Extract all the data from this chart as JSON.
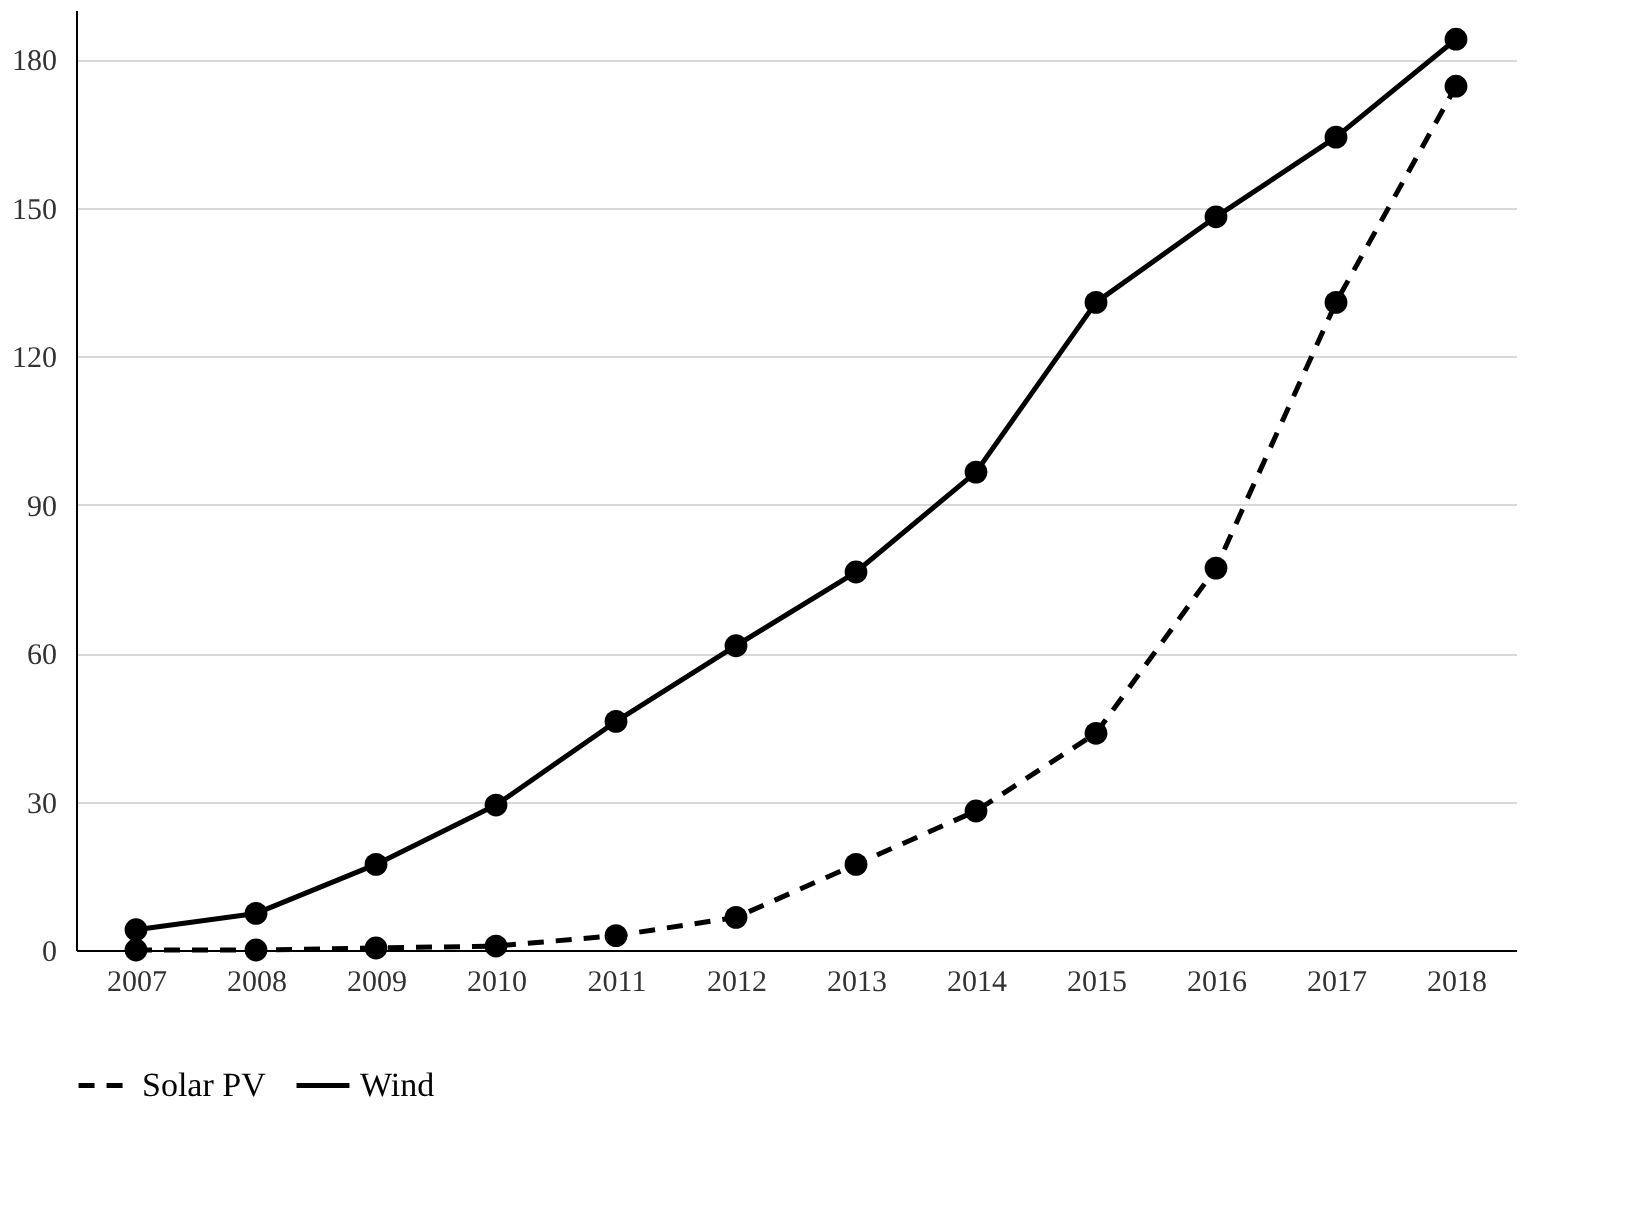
{
  "chart_data": {
    "type": "line",
    "categories": [
      "2007",
      "2008",
      "2009",
      "2010",
      "2011",
      "2012",
      "2013",
      "2014",
      "2015",
      "2016",
      "2017",
      "2018"
    ],
    "series": [
      {
        "name": "Solar PV",
        "color": "#000000",
        "line_style": "dashed",
        "values": [
          0,
          0,
          0.4,
          0.8,
          2.9,
          6.6,
          17.3,
          28.1,
          43.8,
          77.2,
          130.9,
          174.6
        ]
      },
      {
        "name": "Wind",
        "color": "#000000",
        "line_style": "solid",
        "values": [
          4.1,
          7.4,
          17.3,
          29.3,
          46.2,
          61.5,
          76.4,
          96.6,
          130.9,
          148.2,
          164.3,
          184.1
        ]
      }
    ],
    "ylim": [
      0,
      190
    ],
    "yticks": [
      0,
      30,
      60,
      90,
      120,
      150,
      180
    ],
    "grid": "y",
    "legend": "bottom",
    "marker": "circle"
  }
}
